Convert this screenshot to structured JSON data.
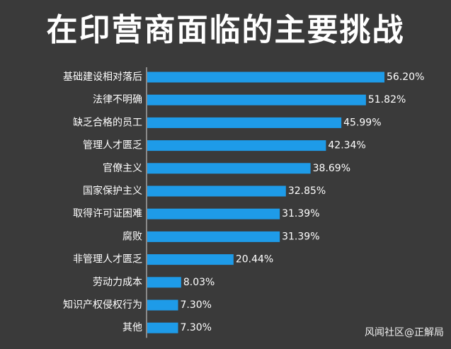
{
  "title": "在印营商面临的主要挑战",
  "watermark": "风闻社区@正解局",
  "colors": {
    "background": "#3a3a3a",
    "bar": "#1e9be8",
    "text": "#ffffff"
  },
  "chart_data": {
    "type": "bar",
    "orientation": "horizontal",
    "title": "在印营商面临的主要挑战",
    "xlabel": "",
    "ylabel": "",
    "categories": [
      "基础建设相对落后",
      "法律不明确",
      "缺乏合格的员工",
      "管理人才匮乏",
      "官僚主义",
      "国家保护主义",
      "取得许可证困难",
      "腐败",
      "非管理人才匮乏",
      "劳动力成本",
      "知识产权侵权行为",
      "其他"
    ],
    "values": [
      56.2,
      51.82,
      45.99,
      42.34,
      38.69,
      32.85,
      31.39,
      31.39,
      20.44,
      8.03,
      7.3,
      7.3
    ],
    "value_labels": [
      "56.20%",
      "51.82%",
      "45.99%",
      "42.34%",
      "38.69%",
      "32.85%",
      "31.39%",
      "31.39%",
      "20.44%",
      "8.03%",
      "7.30%",
      "7.30%"
    ],
    "unit": "%",
    "grid": false,
    "legend": "none"
  }
}
